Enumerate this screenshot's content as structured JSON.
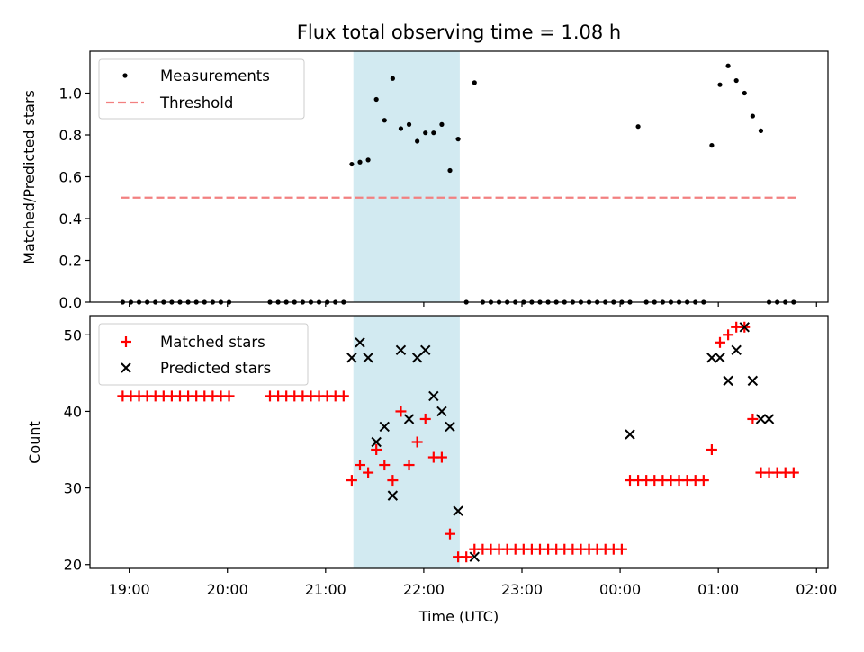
{
  "title": "Flux total observing time = 1.08 h",
  "xlabel": "Time (UTC)",
  "x_ticks": [
    "19:00",
    "20:00",
    "21:00",
    "22:00",
    "23:00",
    "00:00",
    "01:00",
    "02:00"
  ],
  "colors": {
    "threshold": "#f28080",
    "span": "#add8e6",
    "matched": "#ff0000",
    "predicted": "#000000",
    "measurement": "#000000"
  },
  "chart_data": [
    {
      "type": "scatter",
      "ylabel": "Matched/Predicted stars",
      "ylim": [
        0,
        1.2
      ],
      "yticks": [
        "0.0",
        "0.2",
        "0.4",
        "0.6",
        "0.8",
        "1.0"
      ],
      "xlim": [
        "18:36",
        "02:07"
      ],
      "legend_position": "top-left",
      "threshold": {
        "name": "Threshold",
        "value": 0.5,
        "x_range": [
          "18:55",
          "01:48"
        ]
      },
      "highlight_span": [
        "21:17",
        "22:22"
      ],
      "series": [
        {
          "name": "Measurements",
          "x": [
            "18:56",
            "19:01",
            "19:06",
            "19:11",
            "19:16",
            "19:21",
            "19:26",
            "19:31",
            "19:36",
            "19:41",
            "19:46",
            "19:51",
            "19:56",
            "20:01",
            "20:26",
            "20:31",
            "20:36",
            "20:41",
            "20:46",
            "20:51",
            "20:56",
            "21:01",
            "21:06",
            "21:11",
            "21:16",
            "21:21",
            "21:26",
            "21:31",
            "21:36",
            "21:41",
            "21:46",
            "21:51",
            "21:56",
            "22:01",
            "22:06",
            "22:11",
            "22:16",
            "22:21",
            "22:26",
            "22:31",
            "22:36",
            "22:41",
            "22:46",
            "22:51",
            "22:56",
            "23:01",
            "23:06",
            "23:11",
            "23:16",
            "23:21",
            "23:26",
            "23:31",
            "23:36",
            "23:41",
            "23:46",
            "23:51",
            "23:56",
            "00:01",
            "00:06",
            "00:11",
            "00:16",
            "00:21",
            "00:26",
            "00:31",
            "00:36",
            "00:41",
            "00:46",
            "00:51",
            "00:56",
            "01:01",
            "01:06",
            "01:11",
            "01:16",
            "01:21",
            "01:26",
            "01:31",
            "01:36",
            "01:41",
            "01:46"
          ],
          "y": [
            0,
            0,
            0,
            0,
            0,
            0,
            0,
            0,
            0,
            0,
            0,
            0,
            0,
            0,
            0,
            0,
            0,
            0,
            0,
            0,
            0,
            0,
            0,
            0,
            0.66,
            0.67,
            0.68,
            0.97,
            0.87,
            1.07,
            0.83,
            0.85,
            0.77,
            0.81,
            0.81,
            0.85,
            0.63,
            0.78,
            0,
            1.05,
            0,
            0,
            0,
            0,
            0,
            0,
            0,
            0,
            0,
            0,
            0,
            0,
            0,
            0,
            0,
            0,
            0,
            0,
            0,
            0.84,
            0,
            0,
            0,
            0,
            0,
            0,
            0,
            0,
            0.75,
            1.04,
            1.13,
            1.06,
            1.0,
            0.89,
            0.82,
            0,
            0,
            0,
            0
          ]
        }
      ]
    },
    {
      "type": "scatter",
      "ylabel": "Count",
      "ylim": [
        19.5,
        52.5
      ],
      "yticks": [
        "20",
        "30",
        "40",
        "50"
      ],
      "xlim": [
        "18:36",
        "02:07"
      ],
      "legend_position": "top-left",
      "highlight_span": [
        "21:17",
        "22:22"
      ],
      "series": [
        {
          "name": "Matched stars",
          "x": [
            "18:56",
            "19:01",
            "19:06",
            "19:11",
            "19:16",
            "19:21",
            "19:26",
            "19:31",
            "19:36",
            "19:41",
            "19:46",
            "19:51",
            "19:56",
            "20:01",
            "20:26",
            "20:31",
            "20:36",
            "20:41",
            "20:46",
            "20:51",
            "20:56",
            "21:01",
            "21:06",
            "21:11",
            "21:16",
            "21:21",
            "21:26",
            "21:31",
            "21:36",
            "21:41",
            "21:46",
            "21:51",
            "21:56",
            "22:01",
            "22:06",
            "22:11",
            "22:16",
            "22:21",
            "22:26",
            "22:31",
            "22:36",
            "22:41",
            "22:46",
            "22:51",
            "22:56",
            "23:01",
            "23:06",
            "23:11",
            "23:16",
            "23:21",
            "23:26",
            "23:31",
            "23:36",
            "23:41",
            "23:46",
            "23:51",
            "23:56",
            "00:01",
            "00:06",
            "00:11",
            "00:16",
            "00:21",
            "00:26",
            "00:31",
            "00:36",
            "00:41",
            "00:46",
            "00:51",
            "00:56",
            "01:01",
            "01:06",
            "01:11",
            "01:16",
            "01:21",
            "01:26",
            "01:31",
            "01:36",
            "01:41",
            "01:46"
          ],
          "y": [
            42,
            42,
            42,
            42,
            42,
            42,
            42,
            42,
            42,
            42,
            42,
            42,
            42,
            42,
            42,
            42,
            42,
            42,
            42,
            42,
            42,
            42,
            42,
            42,
            31,
            33,
            32,
            35,
            33,
            31,
            40,
            33,
            36,
            39,
            34,
            34,
            24,
            21,
            21,
            22,
            22,
            22,
            22,
            22,
            22,
            22,
            22,
            22,
            22,
            22,
            22,
            22,
            22,
            22,
            22,
            22,
            22,
            22,
            31,
            31,
            31,
            31,
            31,
            31,
            31,
            31,
            31,
            31,
            35,
            49,
            50,
            51,
            51,
            39,
            32,
            32,
            32,
            32,
            32
          ]
        },
        {
          "name": "Predicted stars",
          "x": [
            "21:16",
            "21:21",
            "21:26",
            "21:31",
            "21:36",
            "21:41",
            "21:46",
            "21:51",
            "21:56",
            "22:01",
            "22:06",
            "22:11",
            "22:16",
            "22:21",
            "22:31",
            "00:06",
            "00:56",
            "01:01",
            "01:06",
            "01:11",
            "01:16",
            "01:21",
            "01:26",
            "01:31"
          ],
          "y": [
            47,
            49,
            47,
            36,
            38,
            29,
            48,
            39,
            47,
            48,
            42,
            40,
            38,
            27,
            21,
            37,
            47,
            47,
            44,
            48,
            51,
            44,
            39,
            39
          ]
        }
      ]
    }
  ]
}
